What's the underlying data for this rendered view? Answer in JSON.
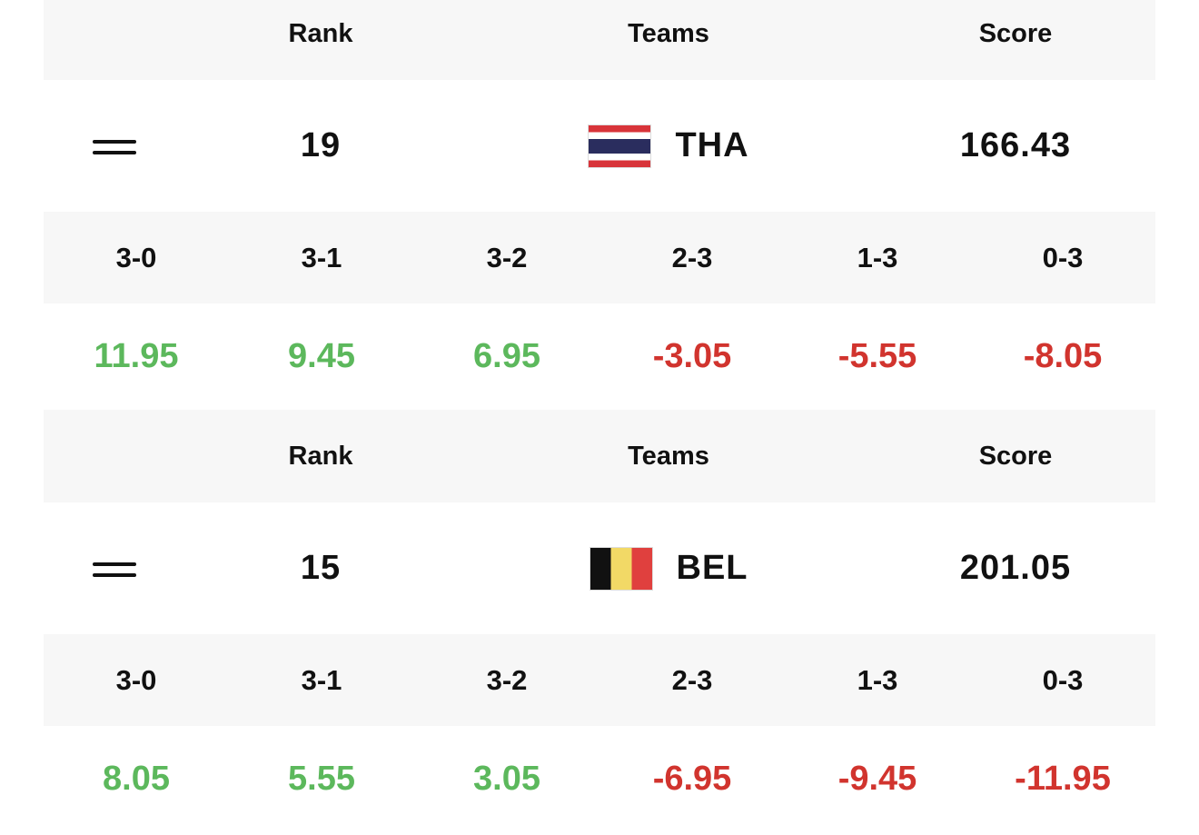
{
  "teams": [
    {
      "header": {
        "rank": "Rank",
        "teams": "Teams",
        "score": "Score"
      },
      "rank": 19,
      "team": "THA",
      "score": 166.43,
      "results": {
        "labels": [
          "3-0",
          "3-1",
          "3-2",
          "2-3",
          "1-3",
          "0-3"
        ],
        "values": [
          11.95,
          9.45,
          6.95,
          -3.05,
          -5.55,
          -8.05
        ]
      }
    },
    {
      "header": {
        "rank": "Rank",
        "teams": "Teams",
        "score": "Score"
      },
      "rank": 15,
      "team": "BEL",
      "score": 201.05,
      "results": {
        "labels": [
          "3-0",
          "3-1",
          "3-2",
          "2-3",
          "1-3",
          "0-3"
        ],
        "values": [
          8.05,
          5.55,
          3.05,
          -6.95,
          -9.45,
          -11.95
        ]
      }
    }
  ]
}
